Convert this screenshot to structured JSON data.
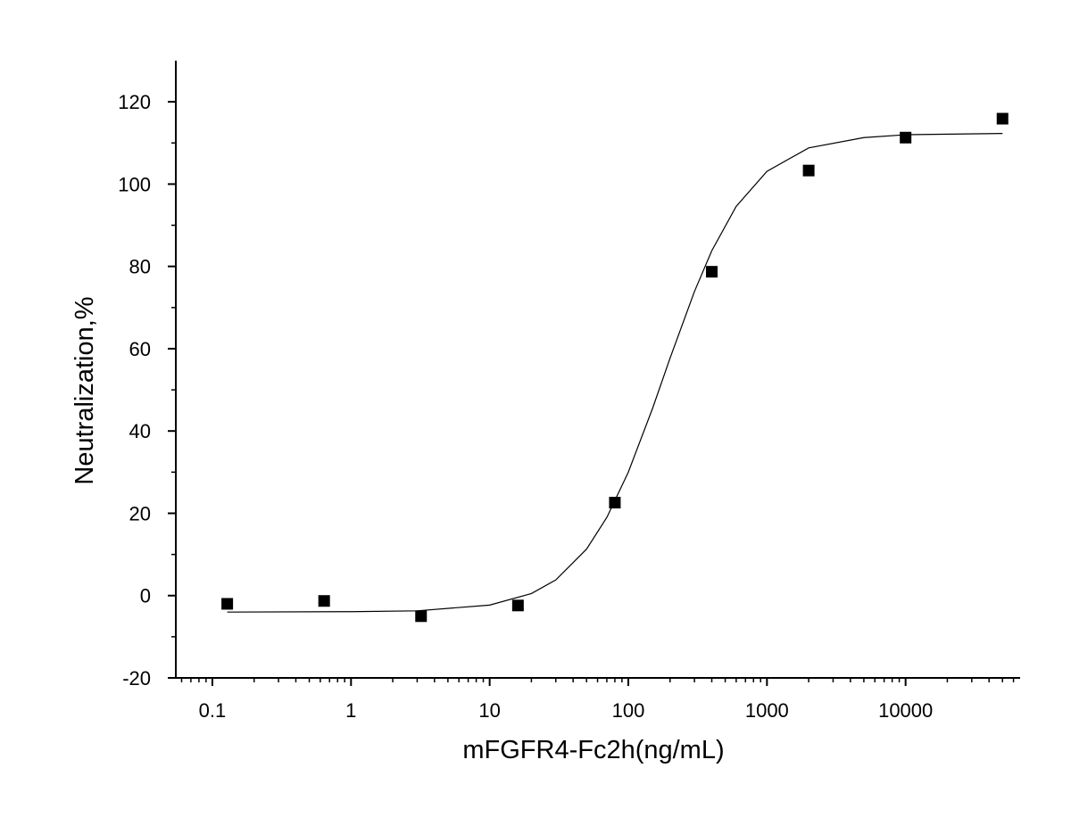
{
  "chart_data": {
    "type": "scatter",
    "x_label": "mFGFR4-Fc2h(ng/mL)",
    "y_label": "Neutralization,%",
    "xscale": "log",
    "xlim": [
      0.0545,
      67000
    ],
    "ylim": [
      -20,
      130
    ],
    "xticks": [
      0.1,
      1,
      10,
      100,
      1000,
      10000
    ],
    "yticks": [
      -20,
      0,
      20,
      40,
      60,
      80,
      100,
      120
    ],
    "series": [
      {
        "type": "scatter",
        "color": "#000000",
        "x": [
          0.128,
          0.64,
          3.2,
          16,
          80,
          400,
          2000,
          10000,
          50000
        ],
        "values": [
          -2.0,
          -1.3,
          -5.0,
          -2.4,
          22.6,
          78.7,
          103.3,
          111.3,
          115.9
        ]
      },
      {
        "type": "line",
        "color": "#000000",
        "x": [
          0.128,
          1,
          3,
          10,
          20,
          30,
          50,
          70,
          100,
          150,
          200,
          300,
          400,
          600,
          1000,
          2000,
          5000,
          10000,
          50000
        ],
        "values": [
          -4.0,
          -3.9,
          -3.7,
          -2.3,
          0.5,
          3.8,
          11.3,
          19.0,
          30.0,
          45.6,
          57.7,
          73.9,
          83.8,
          94.6,
          103.1,
          108.8,
          111.3,
          112.0,
          112.3
        ]
      }
    ]
  }
}
